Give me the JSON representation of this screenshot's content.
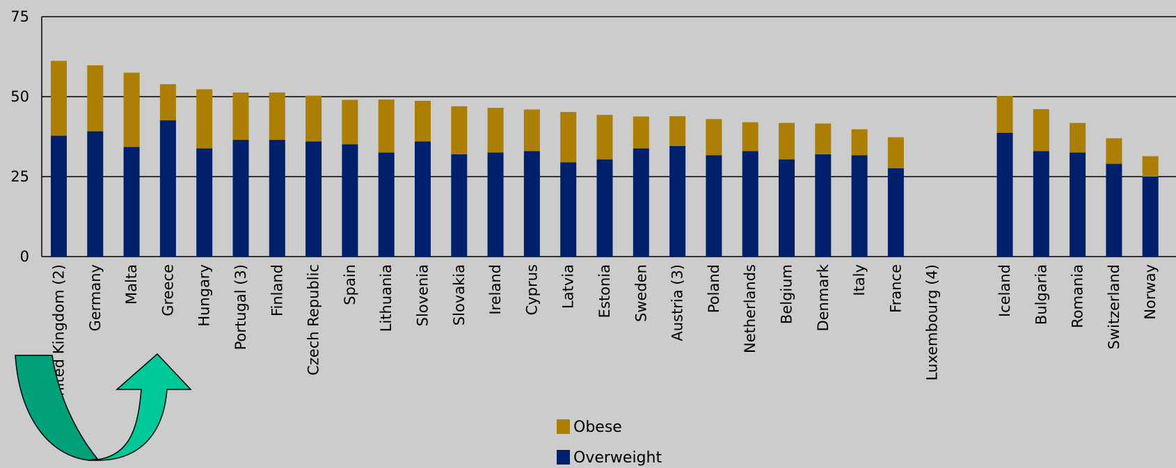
{
  "chart_data": {
    "type": "bar",
    "stacked": true,
    "title": "",
    "xlabel": "",
    "ylabel": "",
    "ylim": [
      0,
      75
    ],
    "yticks": [
      0,
      25,
      50,
      75
    ],
    "grid": true,
    "legend_position": "bottom-center",
    "categories": [
      "United Kingdom (2)",
      "Germany",
      "Malta",
      "Greece",
      "Hungary",
      "Portugal (3)",
      "Finland",
      "Czech Republic",
      "Spain",
      "Lithuania",
      "Slovenia",
      "Slovakia",
      "Ireland",
      "Cyprus",
      "Latvia",
      "Estonia",
      "Sweden",
      "Austria (3)",
      "Poland",
      "Netherlands",
      "Belgium",
      "Denmark",
      "Italy",
      "France",
      "Luxembourg (4)",
      "Iceland",
      "Bulgaria",
      "Romania",
      "Switzerland",
      "Norway"
    ],
    "group_break_after": "Luxembourg (4)",
    "series": [
      {
        "name": "Overweight",
        "color": "#00206b",
        "values": [
          37.8,
          39.2,
          34.3,
          42.6,
          33.8,
          36.5,
          36.5,
          36.0,
          35.1,
          32.5,
          36.0,
          32.0,
          32.5,
          33.0,
          29.5,
          30.4,
          33.8,
          34.6,
          31.7,
          33.0,
          30.4,
          32.0,
          31.7,
          27.6,
          null,
          38.7,
          33.0,
          32.5,
          29.0,
          25.0
        ]
      },
      {
        "name": "Obese",
        "color": "#ac7f04",
        "values": [
          23.4,
          20.6,
          23.2,
          11.3,
          18.5,
          14.8,
          14.8,
          14.3,
          13.9,
          16.6,
          12.7,
          15.0,
          14.0,
          13.0,
          15.7,
          13.9,
          10.0,
          9.3,
          11.3,
          9.0,
          11.4,
          9.6,
          8.1,
          9.7,
          null,
          11.5,
          13.1,
          9.3,
          8.0,
          6.4
        ]
      }
    ]
  },
  "legend": {
    "items": [
      {
        "label": "Obese",
        "color": "#ac7f04"
      },
      {
        "label": "Overweight",
        "color": "#00206b"
      }
    ]
  },
  "overlay": {
    "icon": "curved-arrow-icon",
    "color_light": "#00c896",
    "color_dark": "#00a07a"
  }
}
